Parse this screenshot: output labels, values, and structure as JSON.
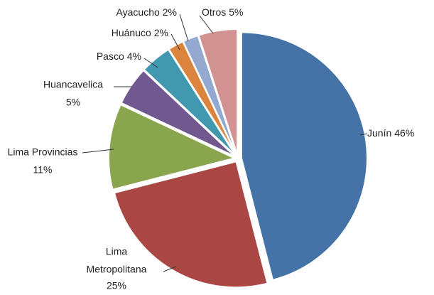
{
  "chart_data": {
    "type": "pie",
    "categories": [
      "Junín",
      "Lima Metropolitana",
      "Lima Provincias",
      "Huancavelica",
      "Pasco",
      "Huánuco",
      "Ayacucho",
      "Otros"
    ],
    "values": [
      46,
      25,
      11,
      5,
      4,
      2,
      2,
      5
    ],
    "value_labels": [
      "46%",
      "25%",
      "11%",
      "5%",
      "4%",
      "2%",
      "2%",
      "5%"
    ],
    "colors": [
      "#4572a7",
      "#aa4643",
      "#89a54e",
      "#71588f",
      "#4198af",
      "#db843d",
      "#93a9cf",
      "#d19392"
    ]
  }
}
